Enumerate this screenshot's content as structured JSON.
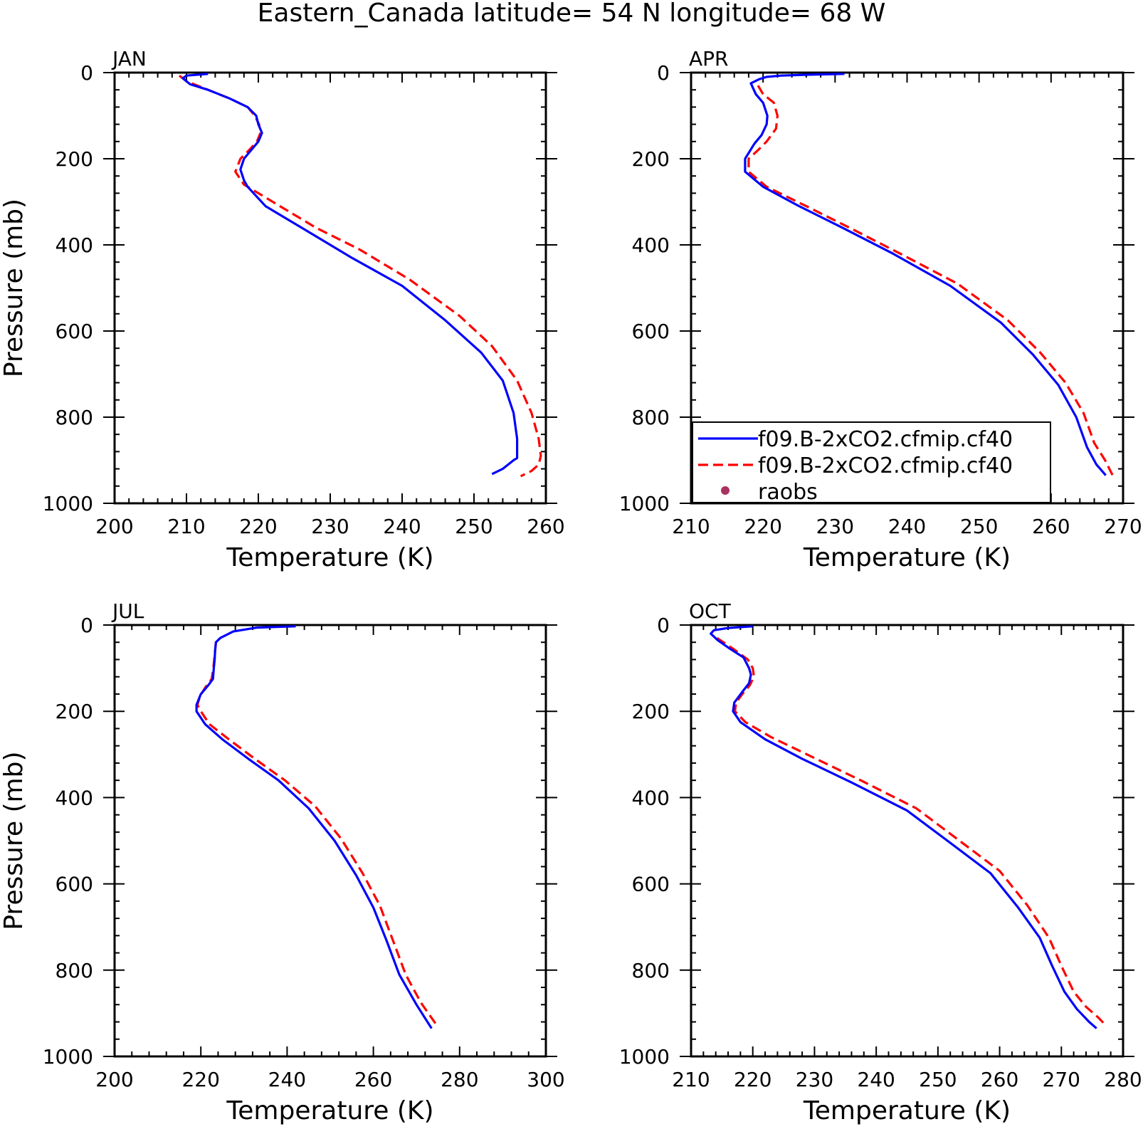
{
  "title": "Eastern_Canada  latitude= 54 N longitude= 68 W",
  "legend": {
    "entries": [
      {
        "label": "f09.B-2xCO2.cfmip.cf40",
        "style": "solid",
        "color": "#0000ff"
      },
      {
        "label": "f09.B-2xCO2.cfmip.cf40",
        "style": "dashed",
        "color": "#ff0000"
      },
      {
        "label": "raobs",
        "style": "dot",
        "color": "#a83260"
      }
    ]
  },
  "chart_data": [
    {
      "type": "line",
      "panel": "JAN",
      "xlabel": "Temperature (K)",
      "ylabel": "Pressure (mb)",
      "xlim": [
        200,
        260
      ],
      "ylim": [
        1000,
        0
      ],
      "xticks": [
        200,
        210,
        220,
        230,
        240,
        250,
        260
      ],
      "yticks": [
        0,
        200,
        400,
        600,
        800,
        1000
      ],
      "y_inverted": true,
      "series": [
        {
          "color": "#0000ff",
          "style": "solid",
          "points": [
            [
              213,
              3
            ],
            [
              210,
              7
            ],
            [
              209.5,
              13
            ],
            [
              210.5,
              27
            ],
            [
              213,
              40
            ],
            [
              216,
              60
            ],
            [
              218.5,
              80
            ],
            [
              219.7,
              100
            ],
            [
              220,
              120
            ],
            [
              220.5,
              140
            ],
            [
              220,
              160
            ],
            [
              219,
              180
            ],
            [
              218,
              200
            ],
            [
              217.5,
              225
            ],
            [
              218,
              250
            ],
            [
              218.5,
              265
            ],
            [
              221,
              310
            ],
            [
              226,
              360
            ],
            [
              233,
              430
            ],
            [
              240,
              495
            ],
            [
              246,
              575
            ],
            [
              251,
              650
            ],
            [
              254,
              715
            ],
            [
              255.5,
              790
            ],
            [
              256,
              850
            ],
            [
              256,
              895
            ],
            [
              255.5,
              900
            ],
            [
              254,
              920
            ],
            [
              252.5,
              932
            ]
          ]
        },
        {
          "color": "#ff0000",
          "style": "dashed",
          "points": [
            [
              209,
              7
            ],
            [
              210,
              20
            ],
            [
              213,
              40
            ],
            [
              216,
              60
            ],
            [
              218.5,
              80
            ],
            [
              219.5,
              100
            ],
            [
              220.1,
              120
            ],
            [
              220.3,
              140
            ],
            [
              219.8,
              160
            ],
            [
              218.7,
              180
            ],
            [
              217.5,
              200
            ],
            [
              216.8,
              230
            ],
            [
              218,
              260
            ],
            [
              222,
              300
            ],
            [
              228,
              360
            ],
            [
              234,
              410
            ],
            [
              241,
              480
            ],
            [
              248,
              565
            ],
            [
              252.5,
              635
            ],
            [
              256,
              715
            ],
            [
              258,
              790
            ],
            [
              259,
              850
            ],
            [
              259.3,
              890
            ],
            [
              259,
              910
            ],
            [
              258,
              925
            ],
            [
              256.5,
              937
            ]
          ]
        }
      ]
    },
    {
      "type": "line",
      "panel": "APR",
      "xlabel": "Temperature (K)",
      "ylabel": "",
      "xlim": [
        210,
        270
      ],
      "ylim": [
        1000,
        0
      ],
      "xticks": [
        210,
        220,
        230,
        240,
        250,
        260,
        270
      ],
      "yticks": [
        0,
        200,
        400,
        600,
        800,
        1000
      ],
      "y_inverted": true,
      "series": [
        {
          "color": "#0000ff",
          "style": "solid",
          "points": [
            [
              231.3,
              3
            ],
            [
              226,
              5
            ],
            [
              222.5,
              7
            ],
            [
              220.5,
              10
            ],
            [
              219.5,
              15
            ],
            [
              218.3,
              25
            ],
            [
              219,
              50
            ],
            [
              220,
              70
            ],
            [
              220.6,
              100
            ],
            [
              220.5,
              120
            ],
            [
              219.8,
              145
            ],
            [
              218.8,
              165
            ],
            [
              217.5,
              200
            ],
            [
              217.5,
              230
            ],
            [
              220,
              265
            ],
            [
              225,
              310
            ],
            [
              231,
              360
            ],
            [
              238,
              420
            ],
            [
              246,
              495
            ],
            [
              253,
              580
            ],
            [
              257.5,
              655
            ],
            [
              261,
              725
            ],
            [
              263.5,
              800
            ],
            [
              265,
              870
            ],
            [
              266.3,
              910
            ],
            [
              267.6,
              935
            ]
          ]
        },
        {
          "color": "#ff0000",
          "style": "dashed",
          "points": [
            [
              219.3,
              30
            ],
            [
              220,
              50
            ],
            [
              221.5,
              70
            ],
            [
              222,
              100
            ],
            [
              221.8,
              130
            ],
            [
              220.5,
              160
            ],
            [
              219.3,
              180
            ],
            [
              218,
              200
            ],
            [
              218,
              230
            ],
            [
              220.5,
              265
            ],
            [
              226,
              310
            ],
            [
              232,
              360
            ],
            [
              239,
              420
            ],
            [
              247,
              490
            ],
            [
              254,
              575
            ],
            [
              258.5,
              650
            ],
            [
              262,
              720
            ],
            [
              264.5,
              790
            ],
            [
              266,
              860
            ],
            [
              267.5,
              900
            ],
            [
              268.7,
              940
            ]
          ]
        }
      ]
    },
    {
      "type": "line",
      "panel": "JUL",
      "xlabel": "Temperature (K)",
      "ylabel": "Pressure (mb)",
      "xlim": [
        200,
        300
      ],
      "ylim": [
        1000,
        0
      ],
      "xticks": [
        200,
        220,
        240,
        260,
        280,
        300
      ],
      "yticks": [
        0,
        200,
        400,
        600,
        800,
        1000
      ],
      "y_inverted": true,
      "series": [
        {
          "color": "#0000ff",
          "style": "solid",
          "points": [
            [
              242,
              3
            ],
            [
              233,
              6
            ],
            [
              227.5,
              15
            ],
            [
              224.5,
              30
            ],
            [
              223.5,
              40
            ],
            [
              223.3,
              60
            ],
            [
              223.2,
              80
            ],
            [
              223,
              100
            ],
            [
              222.8,
              125
            ],
            [
              221.7,
              140
            ],
            [
              220,
              160
            ],
            [
              219,
              185
            ],
            [
              219,
              200
            ],
            [
              221,
              230
            ],
            [
              225,
              265
            ],
            [
              231,
              310
            ],
            [
              238,
              360
            ],
            [
              245,
              425
            ],
            [
              251,
              500
            ],
            [
              256,
              580
            ],
            [
              260,
              655
            ],
            [
              263,
              730
            ],
            [
              266,
              810
            ],
            [
              270,
              880
            ],
            [
              273.5,
              935
            ]
          ]
        },
        {
          "color": "#ff0000",
          "style": "dashed",
          "points": [
            [
              223.5,
              40
            ],
            [
              223.3,
              60
            ],
            [
              223.1,
              80
            ],
            [
              222.9,
              100
            ],
            [
              222.5,
              125
            ],
            [
              221,
              145
            ],
            [
              219.8,
              165
            ],
            [
              219.2,
              185
            ],
            [
              220,
              200
            ],
            [
              222,
              230
            ],
            [
              226.5,
              265
            ],
            [
              232.5,
              310
            ],
            [
              239.5,
              360
            ],
            [
              246.5,
              420
            ],
            [
              252.5,
              495
            ],
            [
              257.5,
              575
            ],
            [
              261.5,
              650
            ],
            [
              264.5,
              730
            ],
            [
              267.5,
              810
            ],
            [
              271,
              875
            ],
            [
              274.5,
              925
            ]
          ]
        }
      ]
    },
    {
      "type": "line",
      "panel": "OCT",
      "xlabel": "Temperature (K)",
      "ylabel": "",
      "xlim": [
        210,
        280
      ],
      "ylim": [
        1000,
        0
      ],
      "xticks": [
        210,
        220,
        230,
        240,
        250,
        260,
        270,
        280
      ],
      "yticks": [
        0,
        200,
        400,
        600,
        800,
        1000
      ],
      "y_inverted": true,
      "series": [
        {
          "color": "#0000ff",
          "style": "solid",
          "points": [
            [
              220,
              3
            ],
            [
              216,
              7
            ],
            [
              213.7,
              12
            ],
            [
              213.2,
              20
            ],
            [
              214.3,
              35
            ],
            [
              216.3,
              55
            ],
            [
              218.5,
              75
            ],
            [
              219.4,
              100
            ],
            [
              219.7,
              115
            ],
            [
              219.4,
              135
            ],
            [
              218.3,
              155
            ],
            [
              217,
              180
            ],
            [
              216.8,
              200
            ],
            [
              218,
              225
            ],
            [
              222,
              265
            ],
            [
              228,
              310
            ],
            [
              236,
              365
            ],
            [
              245,
              430
            ],
            [
              252,
              505
            ],
            [
              258.5,
              575
            ],
            [
              263,
              655
            ],
            [
              266.5,
              725
            ],
            [
              268.5,
              790
            ],
            [
              270.5,
              850
            ],
            [
              272.5,
              890
            ],
            [
              274.5,
              920
            ],
            [
              275.7,
              935
            ]
          ]
        },
        {
          "color": "#ff0000",
          "style": "dashed",
          "points": [
            [
              214.2,
              30
            ],
            [
              216.8,
              55
            ],
            [
              219.2,
              80
            ],
            [
              220,
              100
            ],
            [
              220.2,
              120
            ],
            [
              219.5,
              140
            ],
            [
              218.3,
              160
            ],
            [
              217.3,
              180
            ],
            [
              217.1,
              200
            ],
            [
              218.8,
              225
            ],
            [
              223,
              260
            ],
            [
              229.5,
              305
            ],
            [
              237.5,
              360
            ],
            [
              246.5,
              425
            ],
            [
              253.5,
              500
            ],
            [
              260,
              570
            ],
            [
              264.5,
              650
            ],
            [
              268,
              725
            ],
            [
              270,
              790
            ],
            [
              272,
              850
            ],
            [
              274,
              885
            ],
            [
              276,
              910
            ],
            [
              277.2,
              928
            ]
          ]
        }
      ]
    }
  ]
}
